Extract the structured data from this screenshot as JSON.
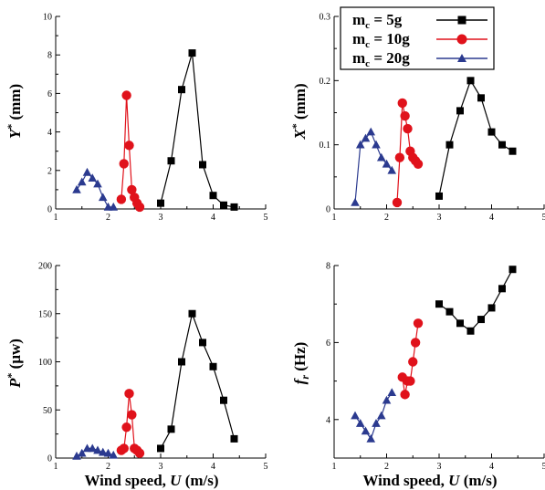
{
  "colors": {
    "s5g": "#000000",
    "s10g": "#e0121b",
    "s20g": "#2b3a8f"
  },
  "legend": {
    "position": "top-right of upper-right panel",
    "entries": [
      {
        "series": "s5g",
        "prefix": "m",
        "sub": "c",
        "suffix": " = 5g",
        "marker": "square"
      },
      {
        "series": "s10g",
        "prefix": "m",
        "sub": "c",
        "suffix": " = 10g",
        "marker": "circle"
      },
      {
        "series": "s20g",
        "prefix": "m",
        "sub": "c",
        "suffix": " = 20g",
        "marker": "triangle"
      }
    ]
  },
  "chart_data": [
    {
      "id": "y-disp",
      "type": "line",
      "ylabel": {
        "main": "Y",
        "sup": "*",
        "sub": "",
        "rest": " (mm)",
        "italic": true
      },
      "xlabel": "",
      "xlim": [
        1,
        5
      ],
      "ylim": [
        0,
        10
      ],
      "xticks": [
        "1",
        "2",
        "3",
        "4",
        "5"
      ],
      "yticks": [
        "0",
        "2",
        "4",
        "6",
        "8",
        "10"
      ],
      "series": [
        {
          "key": "s5g",
          "x": [
            3.0,
            3.2,
            3.4,
            3.6,
            3.8,
            4.0,
            4.2,
            4.4
          ],
          "y": [
            0.3,
            2.5,
            6.2,
            8.1,
            2.3,
            0.7,
            0.2,
            0.1
          ]
        },
        {
          "key": "s10g",
          "x": [
            2.25,
            2.3,
            2.35,
            2.4,
            2.45,
            2.5,
            2.55,
            2.6
          ],
          "y": [
            0.5,
            2.35,
            5.9,
            3.3,
            1.0,
            0.6,
            0.3,
            0.1
          ]
        },
        {
          "key": "s20g",
          "x": [
            1.4,
            1.5,
            1.6,
            1.7,
            1.8,
            1.9,
            2.0,
            2.1
          ],
          "y": [
            1.0,
            1.4,
            1.9,
            1.6,
            1.3,
            0.6,
            0.1,
            0.1
          ]
        }
      ]
    },
    {
      "id": "x-disp",
      "type": "line",
      "ylabel": {
        "main": "X",
        "sup": "*",
        "sub": "",
        "rest": " (mm)",
        "italic": true
      },
      "xlabel": "",
      "xlim": [
        1,
        5
      ],
      "ylim": [
        0,
        0.3
      ],
      "xticks": [
        "1",
        "2",
        "3",
        "4",
        "5"
      ],
      "yticks": [
        "0",
        "0.1",
        "0.2",
        "0.3"
      ],
      "series": [
        {
          "key": "s5g",
          "x": [
            3.0,
            3.2,
            3.4,
            3.6,
            3.8,
            4.0,
            4.2,
            4.4
          ],
          "y": [
            0.02,
            0.1,
            0.153,
            0.2,
            0.173,
            0.12,
            0.1,
            0.09
          ]
        },
        {
          "key": "s10g",
          "x": [
            2.2,
            2.25,
            2.3,
            2.35,
            2.4,
            2.45,
            2.5,
            2.55,
            2.6
          ],
          "y": [
            0.01,
            0.08,
            0.165,
            0.145,
            0.125,
            0.09,
            0.08,
            0.075,
            0.07
          ]
        },
        {
          "key": "s20g",
          "x": [
            1.4,
            1.5,
            1.6,
            1.7,
            1.8,
            1.9,
            2.0,
            2.1
          ],
          "y": [
            0.01,
            0.1,
            0.11,
            0.12,
            0.1,
            0.08,
            0.07,
            0.06
          ]
        }
      ]
    },
    {
      "id": "power",
      "type": "line",
      "ylabel": {
        "main": "P",
        "sup": "*",
        "sub": "",
        "rest": " (μw)",
        "italic": true
      },
      "xlabel": {
        "main": "Wind speed, ",
        "var": "U",
        "rest": " (m/s)"
      },
      "xlim": [
        1,
        5
      ],
      "ylim": [
        0,
        200
      ],
      "xticks": [
        "1",
        "2",
        "3",
        "4",
        "5"
      ],
      "yticks": [
        "0",
        "50",
        "100",
        "150",
        "200"
      ],
      "series": [
        {
          "key": "s5g",
          "x": [
            3.0,
            3.2,
            3.4,
            3.6,
            3.8,
            4.0,
            4.2,
            4.4
          ],
          "y": [
            10,
            30,
            100,
            150,
            120,
            95,
            60,
            20
          ]
        },
        {
          "key": "s10g",
          "x": [
            2.25,
            2.3,
            2.35,
            2.4,
            2.45,
            2.5,
            2.55,
            2.6
          ],
          "y": [
            8,
            10,
            32,
            67,
            45,
            10,
            8,
            5
          ]
        },
        {
          "key": "s20g",
          "x": [
            1.4,
            1.5,
            1.6,
            1.7,
            1.8,
            1.9,
            2.0,
            2.1
          ],
          "y": [
            2,
            5,
            10,
            10,
            8,
            6,
            5,
            3
          ]
        }
      ]
    },
    {
      "id": "freq",
      "type": "line",
      "ylabel": {
        "main": "f",
        "sup": "",
        "sub": "r",
        "rest": " (Hz)",
        "italic": true
      },
      "xlabel": {
        "main": "Wind speed, ",
        "var": "U",
        "rest": " (m/s)"
      },
      "xlim": [
        1,
        5
      ],
      "ylim": [
        3,
        8
      ],
      "yaxis_bottom_offset": true,
      "xticks": [
        "1",
        "2",
        "3",
        "4",
        "5"
      ],
      "yticks": [
        "4",
        "6",
        "8"
      ],
      "ytick_values": [
        4,
        6,
        8
      ],
      "series": [
        {
          "key": "s5g",
          "x": [
            3.0,
            3.2,
            3.4,
            3.6,
            3.8,
            4.0,
            4.2,
            4.4
          ],
          "y": [
            7.0,
            6.8,
            6.5,
            6.3,
            6.6,
            6.9,
            7.4,
            7.9
          ]
        },
        {
          "key": "s10g",
          "x": [
            2.3,
            2.35,
            2.4,
            2.45,
            2.5,
            2.55,
            2.6
          ],
          "y": [
            5.1,
            4.65,
            5.0,
            5.0,
            5.5,
            6.0,
            6.5
          ]
        },
        {
          "key": "s20g",
          "x": [
            1.4,
            1.5,
            1.6,
            1.7,
            1.8,
            1.9,
            2.0,
            2.1
          ],
          "y": [
            4.1,
            3.9,
            3.7,
            3.5,
            3.9,
            4.1,
            4.5,
            4.7
          ]
        }
      ]
    }
  ]
}
